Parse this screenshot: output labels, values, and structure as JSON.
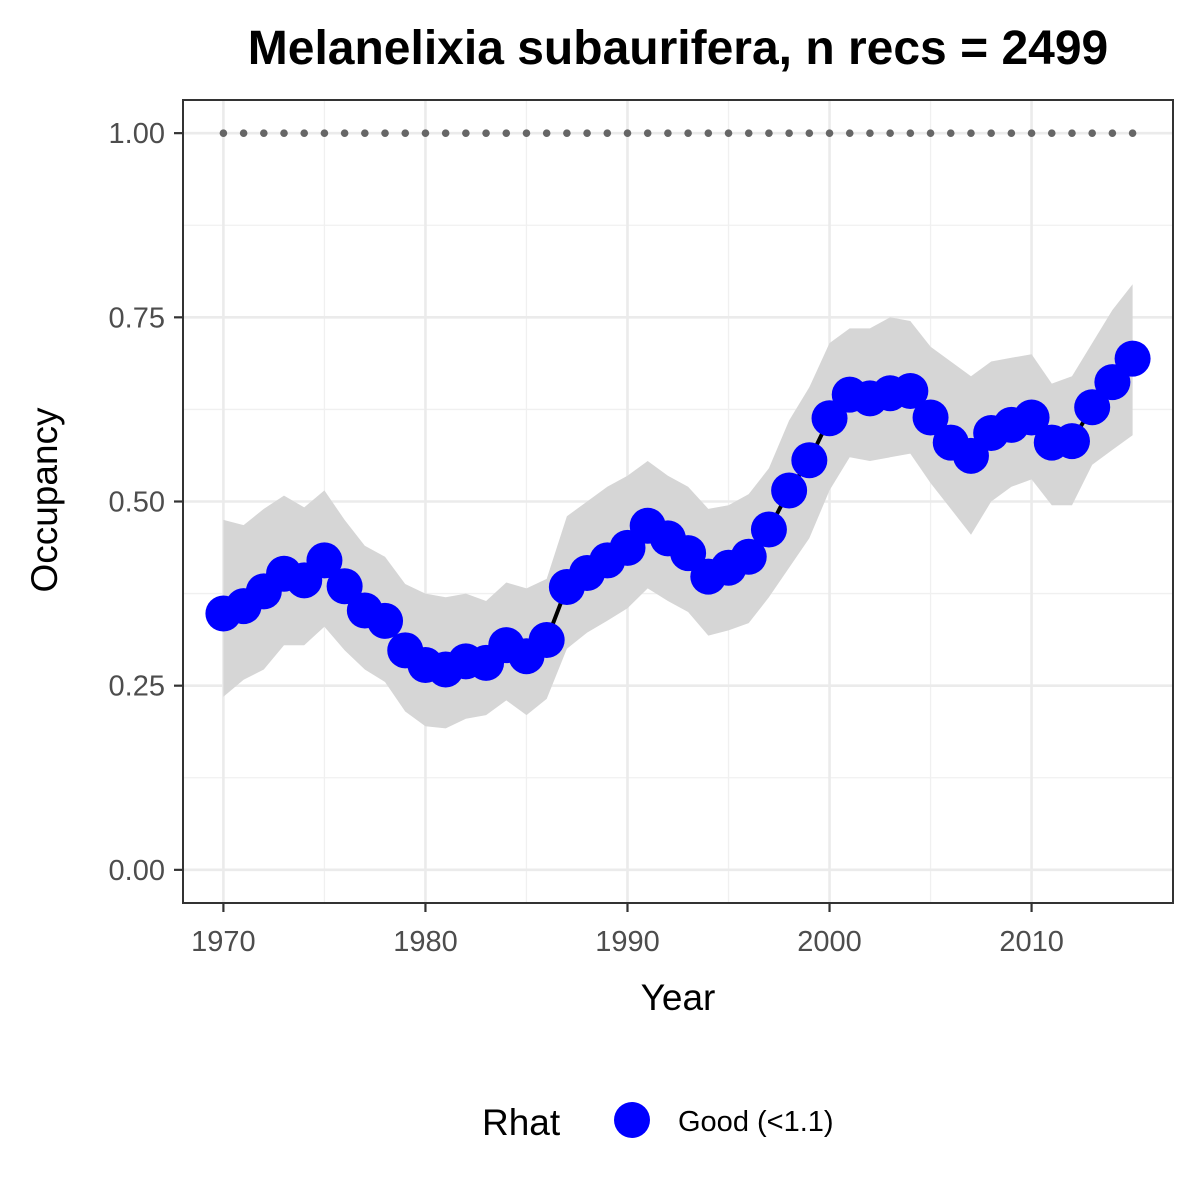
{
  "chart_data": {
    "type": "line",
    "title": "Melanelixia subaurifera, n recs = 2499",
    "xlabel": "Year",
    "ylabel": "Occupancy",
    "xlim": [
      1968,
      2017
    ],
    "ylim": [
      -0.045,
      1.045
    ],
    "x_ticks": [
      1970,
      1980,
      1990,
      2000,
      2010
    ],
    "x_tick_labels": [
      "1970",
      "1980",
      "1990",
      "2000",
      "2010"
    ],
    "y_ticks": [
      0,
      0.25,
      0.5,
      0.75,
      1.0
    ],
    "y_tick_labels": [
      "0.00",
      "0.25",
      "0.50",
      "0.75",
      "1.00"
    ],
    "grid": true,
    "legend": {
      "title": "Rhat",
      "position": "bottom",
      "entries": [
        {
          "label": "Good (<1.1)",
          "color": "#0000ff"
        }
      ]
    },
    "x": [
      1970,
      1971,
      1972,
      1973,
      1974,
      1975,
      1976,
      1977,
      1978,
      1979,
      1980,
      1981,
      1982,
      1983,
      1984,
      1985,
      1986,
      1987,
      1988,
      1989,
      1990,
      1991,
      1992,
      1993,
      1994,
      1995,
      1996,
      1997,
      1998,
      1999,
      2000,
      2001,
      2002,
      2003,
      2004,
      2005,
      2006,
      2007,
      2008,
      2009,
      2010,
      2011,
      2012,
      2013,
      2014,
      2015
    ],
    "series": [
      {
        "values": [
          0.348,
          0.358,
          0.378,
          0.402,
          0.393,
          0.42,
          0.385,
          0.352,
          0.338,
          0.298,
          0.278,
          0.272,
          0.283,
          0.281,
          0.305,
          0.29,
          0.312,
          0.384,
          0.403,
          0.42,
          0.437,
          0.467,
          0.45,
          0.43,
          0.398,
          0.41,
          0.425,
          0.462,
          0.515,
          0.556,
          0.613,
          0.645,
          0.64,
          0.647,
          0.65,
          0.614,
          0.58,
          0.562,
          0.593,
          0.604,
          0.614,
          0.58,
          0.582,
          0.628,
          0.662,
          0.694
        ],
        "lower": [
          0.235,
          0.258,
          0.272,
          0.305,
          0.305,
          0.33,
          0.298,
          0.272,
          0.255,
          0.215,
          0.195,
          0.192,
          0.205,
          0.21,
          0.23,
          0.21,
          0.232,
          0.3,
          0.322,
          0.338,
          0.355,
          0.382,
          0.365,
          0.35,
          0.318,
          0.325,
          0.335,
          0.37,
          0.41,
          0.45,
          0.515,
          0.56,
          0.555,
          0.56,
          0.565,
          0.525,
          0.49,
          0.455,
          0.5,
          0.52,
          0.53,
          0.495,
          0.495,
          0.55,
          0.57,
          0.59
        ],
        "upper": [
          0.475,
          0.468,
          0.49,
          0.508,
          0.492,
          0.515,
          0.475,
          0.44,
          0.425,
          0.388,
          0.375,
          0.37,
          0.375,
          0.365,
          0.39,
          0.382,
          0.395,
          0.48,
          0.5,
          0.52,
          0.535,
          0.555,
          0.535,
          0.52,
          0.49,
          0.495,
          0.51,
          0.545,
          0.61,
          0.655,
          0.715,
          0.735,
          0.735,
          0.75,
          0.745,
          0.71,
          0.69,
          0.67,
          0.69,
          0.695,
          0.7,
          0.66,
          0.67,
          0.715,
          0.76,
          0.795
        ],
        "rhat_status": "Good (<1.1)",
        "point_color": "#0000ff",
        "band_color": "#d6d6d6"
      },
      {
        "values": [
          1,
          1,
          1,
          1,
          1,
          1,
          1,
          1,
          1,
          1,
          1,
          1,
          1,
          1,
          1,
          1,
          1,
          1,
          1,
          1,
          1,
          1,
          1,
          1,
          1,
          1,
          1,
          1,
          1,
          1,
          1,
          1,
          1,
          1,
          1,
          1,
          1,
          1,
          1,
          1,
          1,
          1,
          1,
          1,
          1,
          1
        ],
        "style": "dotted",
        "color": "#666666"
      }
    ]
  }
}
